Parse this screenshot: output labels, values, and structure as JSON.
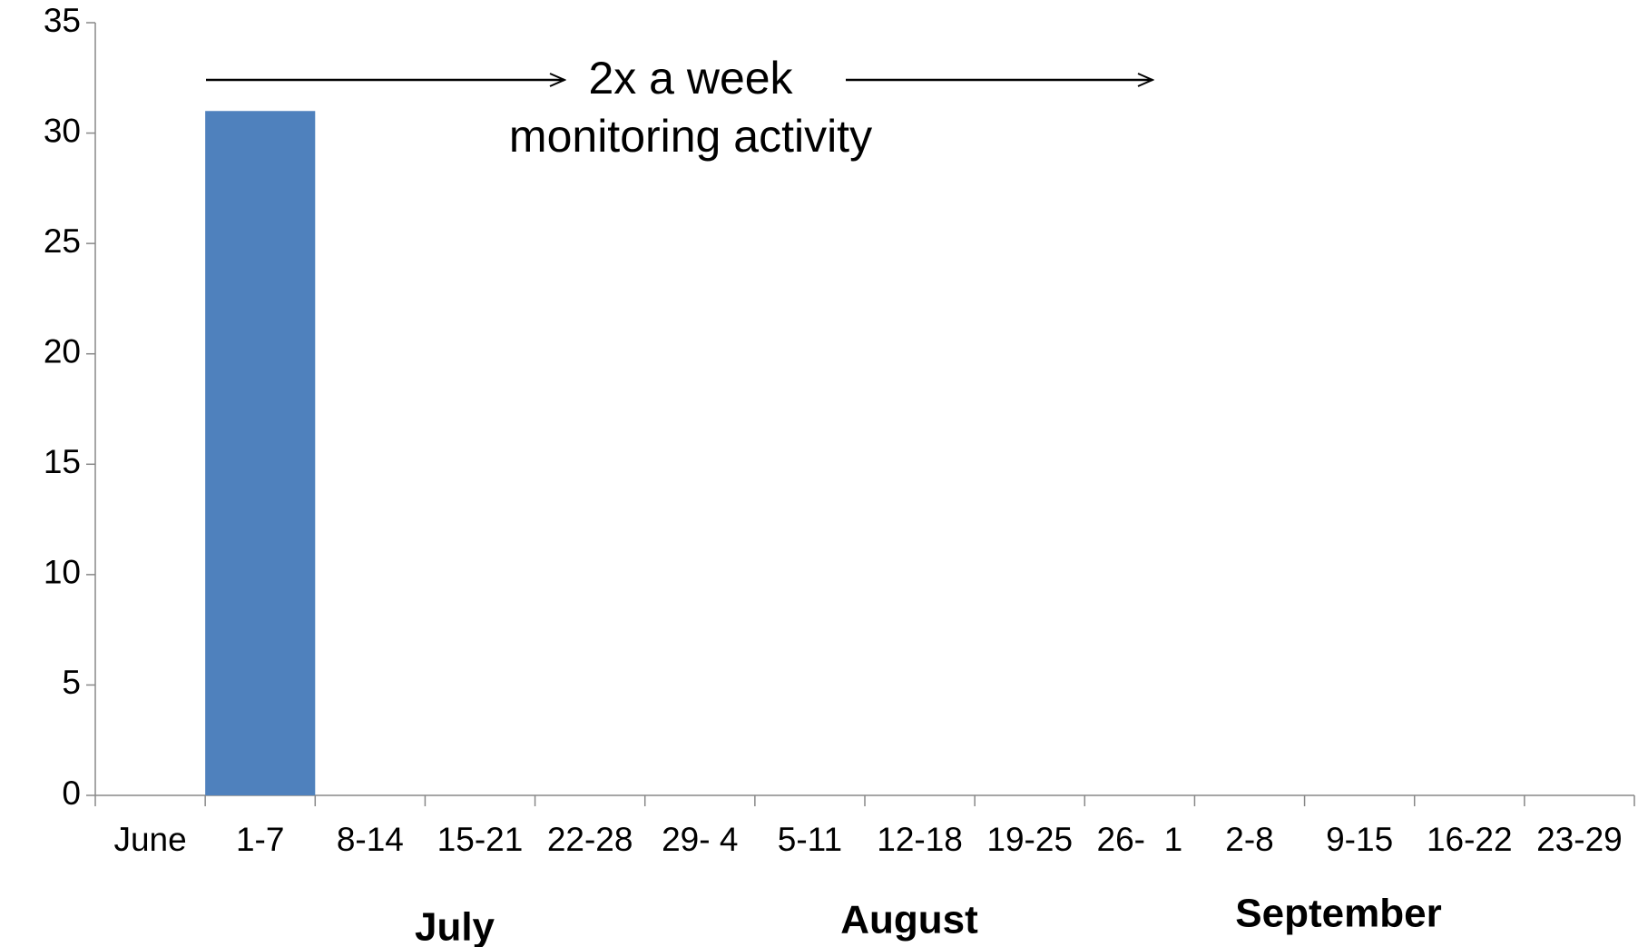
{
  "chart_data": {
    "type": "bar",
    "categories": [
      "June",
      "1-7",
      "8-14",
      "15-21",
      "22-28",
      "29- 4",
      "5-11",
      "12-18",
      "19-25",
      "26-  1",
      "2-8",
      "9-15",
      "16-22",
      "23-29"
    ],
    "values": [
      0,
      31,
      0,
      0,
      0,
      0,
      0,
      0,
      0,
      0,
      0,
      0,
      0,
      0
    ],
    "color": "#4f81bd",
    "ylim": [
      0,
      35
    ],
    "yticks": [
      0,
      5,
      10,
      15,
      20,
      25,
      30,
      35
    ],
    "grid": false,
    "month_labels": [
      "July",
      "August",
      "September"
    ],
    "annotations": [
      "2x a week",
      "monitoring activity"
    ]
  }
}
